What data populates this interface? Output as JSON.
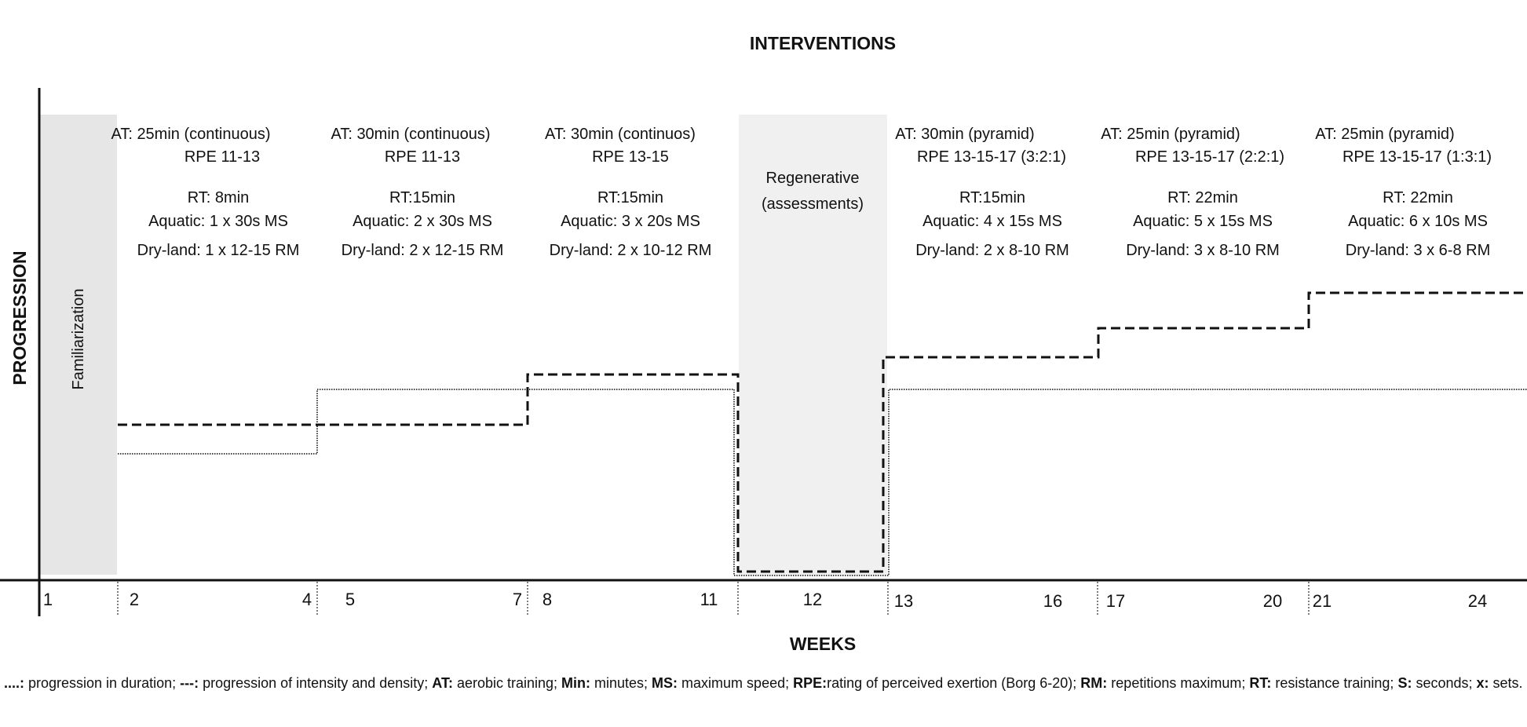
{
  "title": "INTERVENTIONS",
  "y_axis_label": "PROGRESSION",
  "x_axis_label": "WEEKS",
  "familiarization_label": "Familiarization",
  "regenerative_label": [
    "Regenerative",
    "(assessments)"
  ],
  "blocks": [
    {
      "lines": [
        "AT: 25min (continuous)",
        "RPE 11-13",
        "RT: 8min",
        "Aquatic: 1 x 30s MS",
        "Dry-land: 1 x 12-15 RM"
      ]
    },
    {
      "lines": [
        "AT: 30min (continuous)",
        "RPE 11-13",
        "RT:15min",
        "Aquatic:  2 x 30s MS",
        "Dry-land: 2 x 12-15 RM"
      ]
    },
    {
      "lines": [
        "AT: 30min (continuos)",
        "RPE 13-15",
        "RT:15min",
        "Aquatic:  3 x 20s MS",
        "Dry-land: 2 x 10-12 RM"
      ]
    },
    {
      "lines": [
        "AT: 30min (pyramid)",
        "RPE 13-15-17 (3:2:1)",
        "RT:15min",
        "Aquatic: 4 x 15s MS",
        "Dry-land: 2 x 8-10 RM"
      ]
    },
    {
      "lines": [
        "AT: 25min (pyramid)",
        "RPE 13-15-17 (2:2:1)",
        "RT: 22min",
        "Aquatic: 5 x 15s MS",
        "Dry-land: 3 x 8-10 RM"
      ]
    },
    {
      "lines": [
        "AT: 25min (pyramid)",
        "RPE 13-15-17 (1:3:1)",
        "RT: 22min",
        "Aquatic: 6 x 10s MS",
        "Dry-land: 3 x 6-8 RM"
      ]
    }
  ],
  "week_labels": [
    "1",
    "2",
    "4",
    "5",
    "7",
    "8",
    "11",
    "12",
    "13",
    "16",
    "17",
    "20",
    "21",
    "24"
  ],
  "footnote": [
    {
      "bold": true,
      "text": "....:"
    },
    {
      "bold": false,
      "text": " progression in duration; "
    },
    {
      "bold": true,
      "text": "---:"
    },
    {
      "bold": false,
      "text": " progression of intensity and density; "
    },
    {
      "bold": true,
      "text": "AT:"
    },
    {
      "bold": false,
      "text": " aerobic training; "
    },
    {
      "bold": true,
      "text": "Min:"
    },
    {
      "bold": false,
      "text": " minutes; "
    },
    {
      "bold": true,
      "text": "MS:"
    },
    {
      "bold": false,
      "text": " maximum speed; "
    },
    {
      "bold": true,
      "text": "RPE:"
    },
    {
      "bold": false,
      "text": "rating of perceived exertion (Borg 6-20); "
    },
    {
      "bold": true,
      "text": "RM:"
    },
    {
      "bold": false,
      "text": " repetitions maximum; "
    },
    {
      "bold": true,
      "text": "RT:"
    },
    {
      "bold": false,
      "text": " resistance training; "
    },
    {
      "bold": true,
      "text": "S:"
    },
    {
      "bold": false,
      "text": " seconds; "
    },
    {
      "bold": true,
      "text": "x:"
    },
    {
      "bold": false,
      "text": " sets."
    }
  ],
  "colors": {
    "shade": "#e6e6e6",
    "line": "#111111"
  }
}
